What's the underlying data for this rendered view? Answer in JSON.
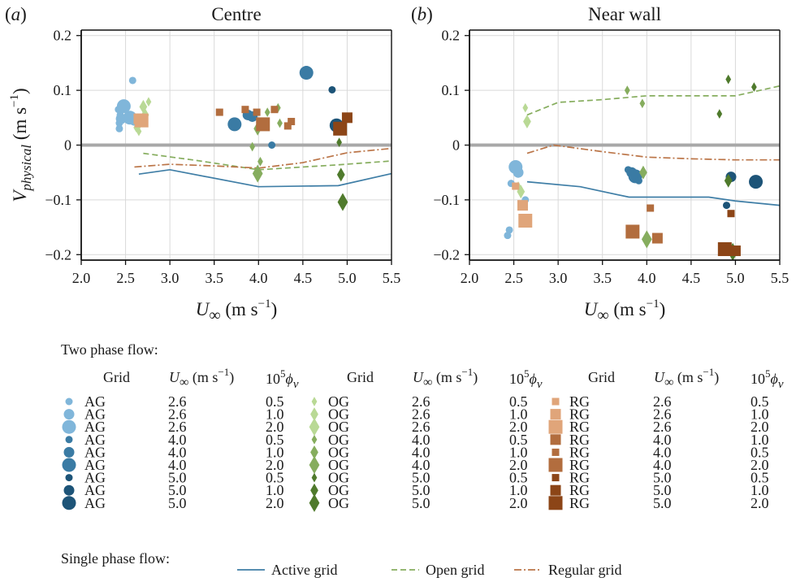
{
  "colors": {
    "AG": [
      "#80b6da",
      "#3a7ba4",
      "#1d5478"
    ],
    "OG": [
      "#b9d995",
      "#86ad5e",
      "#4f7a2c"
    ],
    "RG": [
      "#e0a57a",
      "#b26d3e",
      "#8c4517"
    ],
    "active_line": "#3f7ea6",
    "open_line": "#86ad5e",
    "regular_line": "#bb7548",
    "zero_line": "#a8a8a8",
    "grid": "#d9d9d9"
  },
  "chart_data": [
    {
      "type": "scatter",
      "panel_label": "(a)",
      "title": "Centre",
      "ylabel": "V_physical (m s^-1)",
      "xlabel": "U_∞ (m s^-1)",
      "xlim": [
        2.0,
        5.5
      ],
      "ylim": [
        -0.21,
        0.21
      ],
      "xticks": [
        "2.0",
        "2.5",
        "3.0",
        "3.5",
        "4.0",
        "4.5",
        "5.0",
        "5.5"
      ],
      "yticks": [
        "-0.2",
        "-0.1",
        "0",
        "0.1",
        "0.2"
      ],
      "grid": true,
      "points": [
        {
          "g": "AG",
          "k": 0,
          "s": 1,
          "x": 2.42,
          "y": 0.065
        },
        {
          "g": "AG",
          "k": 0,
          "s": 1,
          "x": 2.44,
          "y": 0.055
        },
        {
          "g": "AG",
          "k": 0,
          "s": 1,
          "x": 2.43,
          "y": 0.04
        },
        {
          "g": "AG",
          "k": 0,
          "s": 1,
          "x": 2.43,
          "y": 0.03
        },
        {
          "g": "AG",
          "k": 0,
          "s": 1,
          "x": 2.58,
          "y": 0.118
        },
        {
          "g": "AG",
          "k": 0,
          "s": 2,
          "x": 2.45,
          "y": 0.048
        },
        {
          "g": "AG",
          "k": 0,
          "s": 3,
          "x": 2.48,
          "y": 0.071
        },
        {
          "g": "AG",
          "k": 0,
          "s": 3,
          "x": 2.55,
          "y": 0.05
        },
        {
          "g": "AG",
          "k": 0,
          "s": 2,
          "x": 2.6,
          "y": 0.045
        },
        {
          "g": "AG",
          "k": 1,
          "s": 3,
          "x": 3.73,
          "y": 0.038
        },
        {
          "g": "AG",
          "k": 1,
          "s": 2,
          "x": 3.88,
          "y": 0.055
        },
        {
          "g": "AG",
          "k": 1,
          "s": 2,
          "x": 3.93,
          "y": 0.052
        },
        {
          "g": "AG",
          "k": 1,
          "s": 1,
          "x": 4.15,
          "y": 0.0
        },
        {
          "g": "AG",
          "k": 1,
          "s": 3,
          "x": 4.54,
          "y": 0.132
        },
        {
          "g": "AG",
          "k": 2,
          "s": 1,
          "x": 4.83,
          "y": 0.101
        },
        {
          "g": "AG",
          "k": 2,
          "s": 3,
          "x": 4.88,
          "y": 0.036
        },
        {
          "g": "OG",
          "k": 0,
          "s": 1,
          "x": 2.62,
          "y": 0.032
        },
        {
          "g": "OG",
          "k": 0,
          "s": 1,
          "x": 2.65,
          "y": 0.025
        },
        {
          "g": "OG",
          "k": 0,
          "s": 2,
          "x": 2.66,
          "y": 0.042
        },
        {
          "g": "OG",
          "k": 0,
          "s": 2,
          "x": 2.7,
          "y": 0.07
        },
        {
          "g": "OG",
          "k": 0,
          "s": 1,
          "x": 2.76,
          "y": 0.079
        },
        {
          "g": "OG",
          "k": 0,
          "s": 2,
          "x": 2.72,
          "y": 0.055
        },
        {
          "g": "OG",
          "k": 1,
          "s": 1,
          "x": 3.93,
          "y": -0.003
        },
        {
          "g": "OG",
          "k": 1,
          "s": 2,
          "x": 3.99,
          "y": 0.03
        },
        {
          "g": "OG",
          "k": 1,
          "s": 1,
          "x": 4.02,
          "y": -0.03
        },
        {
          "g": "OG",
          "k": 1,
          "s": 3,
          "x": 3.99,
          "y": -0.052
        },
        {
          "g": "OG",
          "k": 1,
          "s": 1,
          "x": 4.1,
          "y": 0.06
        },
        {
          "g": "OG",
          "k": 1,
          "s": 1,
          "x": 4.22,
          "y": 0.068
        },
        {
          "g": "OG",
          "k": 1,
          "s": 1,
          "x": 4.24,
          "y": 0.04
        },
        {
          "g": "OG",
          "k": 2,
          "s": 1,
          "x": 4.91,
          "y": 0.005
        },
        {
          "g": "OG",
          "k": 2,
          "s": 2,
          "x": 4.93,
          "y": -0.054
        },
        {
          "g": "OG",
          "k": 2,
          "s": 3,
          "x": 4.95,
          "y": -0.104
        },
        {
          "g": "RG",
          "k": 0,
          "s": 2,
          "x": 2.65,
          "y": 0.048
        },
        {
          "g": "RG",
          "k": 0,
          "s": 3,
          "x": 2.68,
          "y": 0.045
        },
        {
          "g": "RG",
          "k": 1,
          "s": 1,
          "x": 3.56,
          "y": 0.06
        },
        {
          "g": "RG",
          "k": 1,
          "s": 1,
          "x": 3.85,
          "y": 0.065
        },
        {
          "g": "RG",
          "k": 1,
          "s": 1,
          "x": 3.98,
          "y": 0.06
        },
        {
          "g": "RG",
          "k": 1,
          "s": 3,
          "x": 4.05,
          "y": 0.038
        },
        {
          "g": "RG",
          "k": 1,
          "s": 1,
          "x": 4.18,
          "y": 0.065
        },
        {
          "g": "RG",
          "k": 1,
          "s": 1,
          "x": 4.33,
          "y": 0.035
        },
        {
          "g": "RG",
          "k": 1,
          "s": 1,
          "x": 4.37,
          "y": 0.043
        },
        {
          "g": "RG",
          "k": 2,
          "s": 3,
          "x": 4.92,
          "y": 0.03
        },
        {
          "g": "RG",
          "k": 2,
          "s": 2,
          "x": 5.0,
          "y": 0.05
        }
      ],
      "lines": [
        {
          "id": "active",
          "x": [
            2.65,
            3.0,
            4.0,
            4.9,
            5.5
          ],
          "y": [
            -0.053,
            -0.045,
            -0.076,
            -0.074,
            -0.052
          ]
        },
        {
          "id": "open",
          "x": [
            2.7,
            3.3,
            4.0,
            4.9,
            5.5
          ],
          "y": [
            -0.015,
            -0.028,
            -0.045,
            -0.036,
            -0.029
          ]
        },
        {
          "id": "regular",
          "x": [
            2.6,
            3.0,
            3.5,
            4.0,
            4.5,
            5.0,
            5.5
          ],
          "y": [
            -0.04,
            -0.035,
            -0.038,
            -0.042,
            -0.032,
            -0.014,
            -0.006
          ]
        }
      ]
    },
    {
      "type": "scatter",
      "panel_label": "(b)",
      "title": "Near wall",
      "xlabel": "U_∞ (m s^-1)",
      "xlim": [
        2.0,
        5.5
      ],
      "ylim": [
        -0.21,
        0.21
      ],
      "xticks": [
        "2.0",
        "2.5",
        "3.0",
        "3.5",
        "4.0",
        "4.5",
        "5.0",
        "5.5"
      ],
      "yticks": [
        "-0.2",
        "-0.1",
        "0",
        "0.1",
        "0.2"
      ],
      "grid": true,
      "points": [
        {
          "g": "AG",
          "k": 0,
          "s": 1,
          "x": 2.43,
          "y": -0.165
        },
        {
          "g": "AG",
          "k": 0,
          "s": 1,
          "x": 2.45,
          "y": -0.155
        },
        {
          "g": "AG",
          "k": 0,
          "s": 1,
          "x": 2.47,
          "y": -0.07
        },
        {
          "g": "AG",
          "k": 0,
          "s": 3,
          "x": 2.52,
          "y": -0.04
        },
        {
          "g": "AG",
          "k": 0,
          "s": 2,
          "x": 2.55,
          "y": -0.05
        },
        {
          "g": "AG",
          "k": 0,
          "s": 1,
          "x": 2.63,
          "y": -0.1
        },
        {
          "g": "AG",
          "k": 1,
          "s": 1,
          "x": 3.79,
          "y": -0.045
        },
        {
          "g": "AG",
          "k": 1,
          "s": 2,
          "x": 3.83,
          "y": -0.05
        },
        {
          "g": "AG",
          "k": 1,
          "s": 3,
          "x": 3.87,
          "y": -0.057
        },
        {
          "g": "AG",
          "k": 1,
          "s": 1,
          "x": 3.91,
          "y": -0.065
        },
        {
          "g": "AG",
          "k": 2,
          "s": 1,
          "x": 4.9,
          "y": -0.11
        },
        {
          "g": "AG",
          "k": 2,
          "s": 2,
          "x": 4.95,
          "y": -0.058
        },
        {
          "g": "AG",
          "k": 2,
          "s": 3,
          "x": 5.23,
          "y": -0.067
        },
        {
          "g": "OG",
          "k": 0,
          "s": 1,
          "x": 2.63,
          "y": 0.068
        },
        {
          "g": "OG",
          "k": 0,
          "s": 2,
          "x": 2.65,
          "y": 0.043
        },
        {
          "g": "OG",
          "k": 0,
          "s": 1,
          "x": 2.55,
          "y": -0.075
        },
        {
          "g": "OG",
          "k": 0,
          "s": 2,
          "x": 2.58,
          "y": -0.085
        },
        {
          "g": "OG",
          "k": 1,
          "s": 1,
          "x": 3.78,
          "y": 0.1
        },
        {
          "g": "OG",
          "k": 1,
          "s": 1,
          "x": 3.95,
          "y": 0.076
        },
        {
          "g": "OG",
          "k": 1,
          "s": 2,
          "x": 3.96,
          "y": -0.05
        },
        {
          "g": "OG",
          "k": 1,
          "s": 3,
          "x": 4.0,
          "y": -0.172
        },
        {
          "g": "OG",
          "k": 2,
          "s": 1,
          "x": 4.82,
          "y": 0.057
        },
        {
          "g": "OG",
          "k": 2,
          "s": 1,
          "x": 4.92,
          "y": 0.12
        },
        {
          "g": "OG",
          "k": 2,
          "s": 1,
          "x": 5.21,
          "y": 0.106
        },
        {
          "g": "OG",
          "k": 2,
          "s": 2,
          "x": 4.92,
          "y": -0.065
        },
        {
          "g": "OG",
          "k": 2,
          "s": 3,
          "x": 4.97,
          "y": -0.195
        },
        {
          "g": "RG",
          "k": 0,
          "s": 1,
          "x": 2.52,
          "y": -0.075
        },
        {
          "g": "RG",
          "k": 0,
          "s": 2,
          "x": 2.6,
          "y": -0.11
        },
        {
          "g": "RG",
          "k": 0,
          "s": 3,
          "x": 2.63,
          "y": -0.138
        },
        {
          "g": "RG",
          "k": 1,
          "s": 1,
          "x": 4.04,
          "y": -0.115
        },
        {
          "g": "RG",
          "k": 1,
          "s": 3,
          "x": 3.84,
          "y": -0.158
        },
        {
          "g": "RG",
          "k": 1,
          "s": 2,
          "x": 4.12,
          "y": -0.17
        },
        {
          "g": "RG",
          "k": 2,
          "s": 1,
          "x": 4.95,
          "y": -0.125
        },
        {
          "g": "RG",
          "k": 2,
          "s": 3,
          "x": 4.88,
          "y": -0.19
        },
        {
          "g": "RG",
          "k": 2,
          "s": 2,
          "x": 5.0,
          "y": -0.193
        }
      ],
      "lines": [
        {
          "id": "active",
          "x": [
            2.65,
            3.25,
            3.8,
            4.2,
            4.7,
            5.0,
            5.5
          ],
          "y": [
            -0.067,
            -0.076,
            -0.095,
            -0.095,
            -0.095,
            -0.102,
            -0.11
          ]
        },
        {
          "id": "open",
          "x": [
            2.65,
            3.0,
            3.5,
            4.0,
            4.5,
            5.0,
            5.5
          ],
          "y": [
            0.055,
            0.078,
            0.083,
            0.09,
            0.09,
            0.09,
            0.108
          ]
        },
        {
          "id": "regular",
          "x": [
            2.65,
            2.95,
            3.5,
            4.0,
            4.5,
            5.0,
            5.5
          ],
          "y": [
            -0.015,
            0.0,
            -0.012,
            -0.022,
            -0.025,
            -0.027,
            -0.027
          ]
        }
      ]
    }
  ],
  "legend": {
    "heading": "Two phase flow:",
    "col_grid": "Grid",
    "col_u": "U",
    "col_u_unit": " (m s",
    "col_u_exp": "−1",
    "col_u_close": ")",
    "col_phi_pre": "10",
    "col_phi_exp": "5",
    "col_phi_sym": "ϕ",
    "col_phi_sub": "v",
    "groups": [
      {
        "key": "AG",
        "rows": [
          {
            "grid": "AG",
            "u": "2.6",
            "phi": "0.5",
            "k": 0,
            "s": 1
          },
          {
            "grid": "AG",
            "u": "2.6",
            "phi": "1.0",
            "k": 0,
            "s": 2
          },
          {
            "grid": "AG",
            "u": "2.6",
            "phi": "2.0",
            "k": 0,
            "s": 3
          },
          {
            "grid": "AG",
            "u": "4.0",
            "phi": "0.5",
            "k": 1,
            "s": 1
          },
          {
            "grid": "AG",
            "u": "4.0",
            "phi": "1.0",
            "k": 1,
            "s": 2
          },
          {
            "grid": "AG",
            "u": "4.0",
            "phi": "2.0",
            "k": 1,
            "s": 3
          },
          {
            "grid": "AG",
            "u": "5.0",
            "phi": "0.5",
            "k": 2,
            "s": 1
          },
          {
            "grid": "AG",
            "u": "5.0",
            "phi": "1.0",
            "k": 2,
            "s": 2
          },
          {
            "grid": "AG",
            "u": "5.0",
            "phi": "2.0",
            "k": 2,
            "s": 3
          }
        ]
      },
      {
        "key": "OG",
        "rows": [
          {
            "grid": "OG",
            "u": "2.6",
            "phi": "0.5",
            "k": 0,
            "s": 1
          },
          {
            "grid": "OG",
            "u": "2.6",
            "phi": "1.0",
            "k": 0,
            "s": 2
          },
          {
            "grid": "OG",
            "u": "2.6",
            "phi": "2.0",
            "k": 0,
            "s": 3
          },
          {
            "grid": "OG",
            "u": "4.0",
            "phi": "0.5",
            "k": 1,
            "s": 1
          },
          {
            "grid": "OG",
            "u": "4.0",
            "phi": "1.0",
            "k": 1,
            "s": 2
          },
          {
            "grid": "OG",
            "u": "4.0",
            "phi": "2.0",
            "k": 1,
            "s": 3
          },
          {
            "grid": "OG",
            "u": "5.0",
            "phi": "0.5",
            "k": 2,
            "s": 1
          },
          {
            "grid": "OG",
            "u": "5.0",
            "phi": "1.0",
            "k": 2,
            "s": 2
          },
          {
            "grid": "OG",
            "u": "5.0",
            "phi": "2.0",
            "k": 2,
            "s": 3
          }
        ]
      },
      {
        "key": "RG",
        "rows": [
          {
            "grid": "RG",
            "u": "2.6",
            "phi": "0.5",
            "k": 0,
            "s": 1
          },
          {
            "grid": "RG",
            "u": "2.6",
            "phi": "1.0",
            "k": 0,
            "s": 2
          },
          {
            "grid": "RG",
            "u": "2.6",
            "phi": "2.0",
            "k": 0,
            "s": 3
          },
          {
            "grid": "RG",
            "u": "4.0",
            "phi": "1.0",
            "k": 1,
            "s": 2
          },
          {
            "grid": "RG",
            "u": "4.0",
            "phi": "0.5",
            "k": 1,
            "s": 1
          },
          {
            "grid": "RG",
            "u": "4.0",
            "phi": "2.0",
            "k": 1,
            "s": 3
          },
          {
            "grid": "RG",
            "u": "5.0",
            "phi": "0.5",
            "k": 2,
            "s": 1
          },
          {
            "grid": "RG",
            "u": "5.0",
            "phi": "1.0",
            "k": 2,
            "s": 2
          },
          {
            "grid": "RG",
            "u": "5.0",
            "phi": "2.0",
            "k": 2,
            "s": 3
          }
        ]
      }
    ],
    "single_heading": "Single phase flow:",
    "single": [
      {
        "id": "active",
        "label": "Active grid"
      },
      {
        "id": "open",
        "label": "Open grid"
      },
      {
        "id": "regular",
        "label": "Regular grid"
      }
    ]
  }
}
